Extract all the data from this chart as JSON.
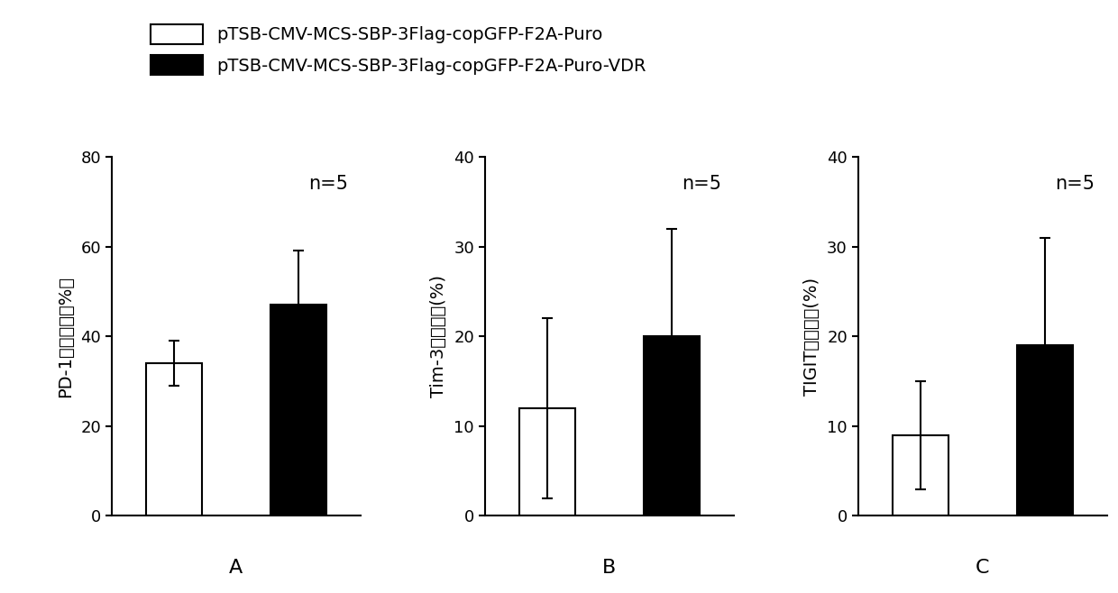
{
  "panels": [
    {
      "label": "A",
      "ylabel_parts": [
        "PD-1",
        "下降比例（%）"
      ],
      "ylabel_combined": "PD-1下降比例（%）",
      "ylim": [
        0,
        80
      ],
      "yticks": [
        0,
        20,
        40,
        60,
        80
      ],
      "bar_values": [
        34,
        47
      ],
      "bar_errors": [
        5,
        12
      ],
      "n_label": "n=5"
    },
    {
      "label": "B",
      "ylabel_parts": [
        "Tim-3",
        "下降比例(%)"
      ],
      "ylabel_combined": "Tim-3下降比例(%)",
      "ylim": [
        0,
        40
      ],
      "yticks": [
        0,
        10,
        20,
        30,
        40
      ],
      "bar_values": [
        12,
        20
      ],
      "bar_errors": [
        10,
        12
      ],
      "n_label": "n=5"
    },
    {
      "label": "C",
      "ylabel_parts": [
        "TIGIT",
        "下降比例(%)"
      ],
      "ylabel_combined": "TIGIT下降比例(%)",
      "ylim": [
        0,
        40
      ],
      "yticks": [
        0,
        10,
        20,
        30,
        40
      ],
      "bar_values": [
        9,
        19
      ],
      "bar_errors": [
        6,
        12
      ],
      "n_label": "n=5"
    }
  ],
  "legend_labels": [
    "pTSB-CMV-MCS-SBP-3Flag-copGFP-F2A-Puro",
    "pTSB-CMV-MCS-SBP-3Flag-copGFP-F2A-Puro-VDR"
  ],
  "bar_colors": [
    "white",
    "black"
  ],
  "bar_edgecolor": "black",
  "bar_width": 0.45,
  "background_color": "white",
  "fontsize_legend": 14,
  "fontsize_ylabel": 14,
  "fontsize_ticks": 13,
  "fontsize_label": 16,
  "fontsize_n": 15,
  "capsize": 4,
  "error_linewidth": 1.5,
  "bar_linewidth": 1.5
}
